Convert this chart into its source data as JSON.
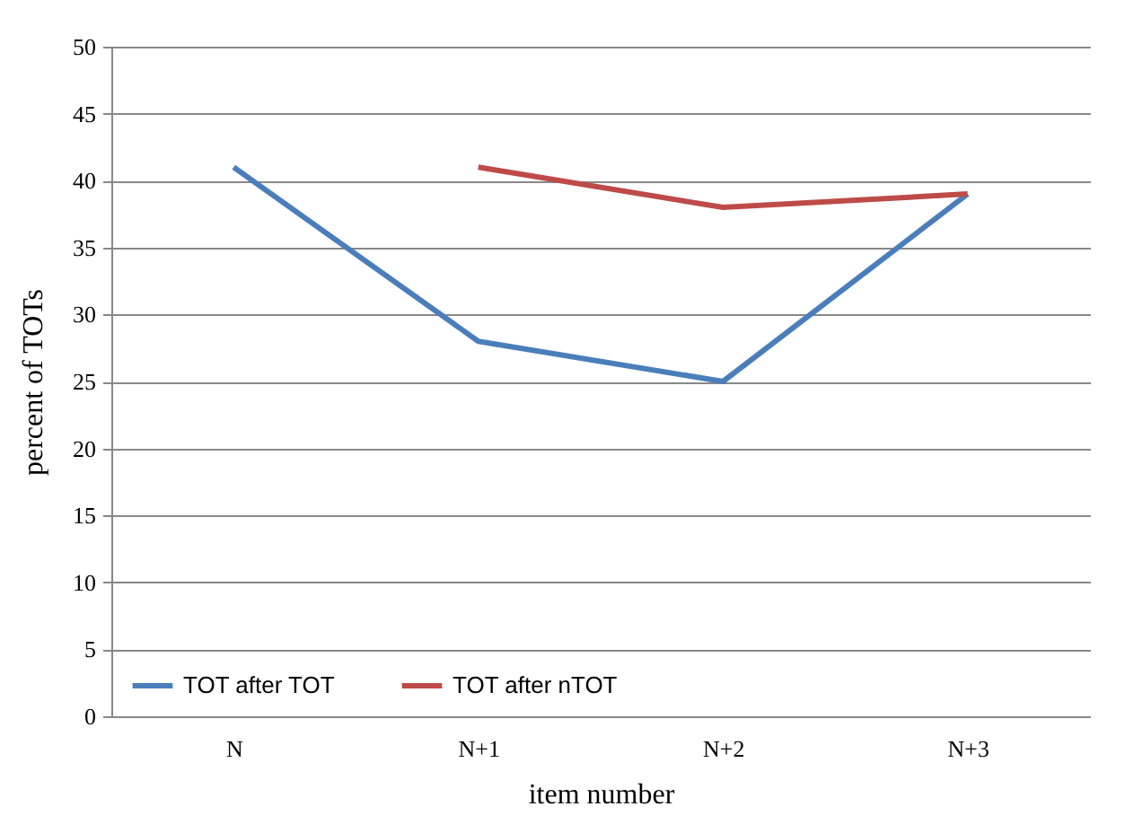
{
  "chart_data": {
    "type": "line",
    "xlabel": "item number",
    "ylabel": "percent of  TOTs",
    "categories": [
      "N",
      "N+1",
      "N+2",
      "N+3"
    ],
    "series": [
      {
        "name": "TOT after TOT",
        "color": "#4a7ebb",
        "values": [
          41,
          28,
          25,
          39
        ]
      },
      {
        "name": "TOT after nTOT",
        "color": "#be4b48",
        "values": [
          null,
          41,
          38,
          39
        ]
      }
    ],
    "ylim": [
      0,
      50
    ],
    "yticks": [
      0,
      5,
      10,
      15,
      20,
      25,
      30,
      35,
      40,
      45,
      50
    ],
    "grid": "y",
    "legend": "bottom left",
    "marker": "none",
    "line_style": "solid"
  }
}
